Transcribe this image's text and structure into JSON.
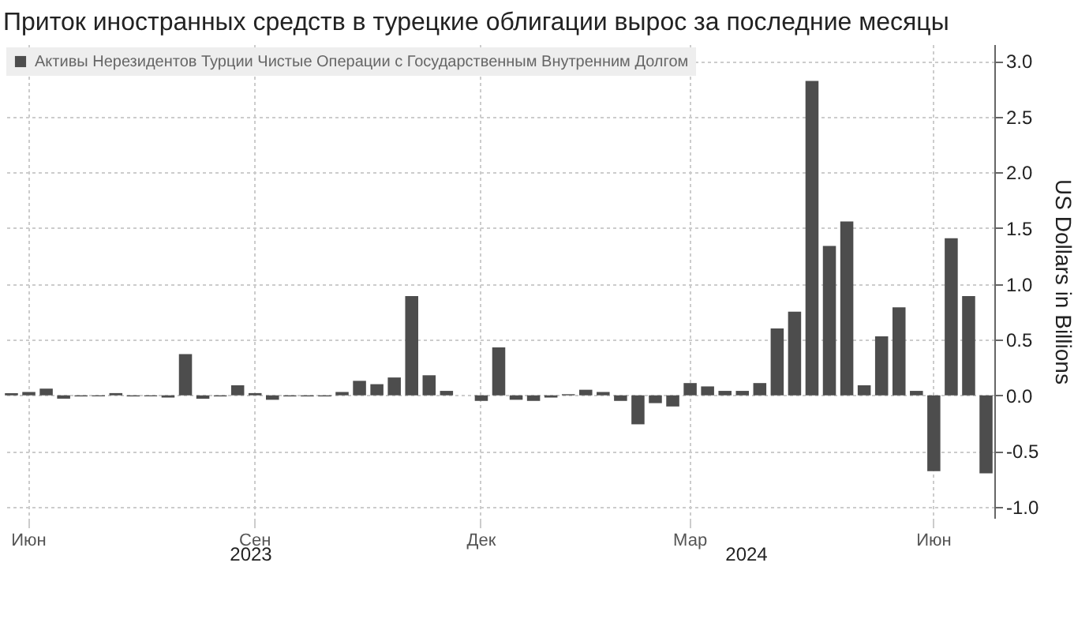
{
  "chart_data": {
    "type": "bar",
    "title": "Приток иностранных средств в турецкие облигации вырос за последние месяцы",
    "y2label": "US Dollars in Billions",
    "categories": [
      null,
      "Июн",
      null,
      null,
      null,
      null,
      null,
      null,
      null,
      null,
      null,
      null,
      null,
      null,
      "Сен",
      null,
      null,
      null,
      null,
      null,
      null,
      null,
      null,
      null,
      null,
      null,
      null,
      "Дек",
      null,
      null,
      null,
      null,
      null,
      null,
      null,
      null,
      null,
      null,
      null,
      "Мар",
      null,
      null,
      null,
      null,
      null,
      null,
      null,
      null,
      null,
      null,
      null,
      null,
      null,
      "Июн",
      null,
      null,
      null
    ],
    "series": [
      {
        "name": "Активы Нерезидентов Турции Чистые Операции с Государственным Внутренним Долгом",
        "color": "#4d4d4d",
        "axis": "y2",
        "values": [
          0.02,
          0.03,
          0.06,
          -0.03,
          -0.01,
          -0.01,
          0.02,
          -0.01,
          -0.01,
          -0.02,
          0.37,
          -0.03,
          -0.01,
          0.09,
          0.02,
          -0.04,
          -0.01,
          -0.01,
          -0.01,
          0.03,
          0.13,
          0.1,
          0.16,
          0.89,
          0.18,
          0.04,
          null,
          -0.05,
          0.43,
          -0.04,
          -0.05,
          -0.02,
          0.01,
          0.05,
          0.03,
          -0.05,
          -0.26,
          -0.07,
          -0.1,
          0.11,
          0.08,
          0.04,
          0.04,
          0.11,
          0.6,
          0.75,
          2.82,
          1.34,
          1.56,
          0.09,
          0.53,
          0.79,
          0.04,
          -0.68,
          1.41,
          0.89,
          -0.7
        ]
      }
    ],
    "y2lim": [
      -1.1,
      3.15
    ],
    "y2ticks": [
      {
        "value": -1,
        "label": "-1.0"
      },
      {
        "value": -0.5,
        "label": "-0.5"
      },
      {
        "value": 0,
        "label": "0.0"
      },
      {
        "value": 0.5,
        "label": "0.5"
      },
      {
        "value": 1,
        "label": "1.0"
      },
      {
        "value": 1.5,
        "label": "1.5"
      },
      {
        "value": 2,
        "label": "2.0"
      },
      {
        "value": 2.5,
        "label": "2.5"
      },
      {
        "value": 3,
        "label": "3.0"
      }
    ],
    "annotations": [
      "2023",
      "2024"
    ],
    "grid": true,
    "legend": "top left"
  }
}
